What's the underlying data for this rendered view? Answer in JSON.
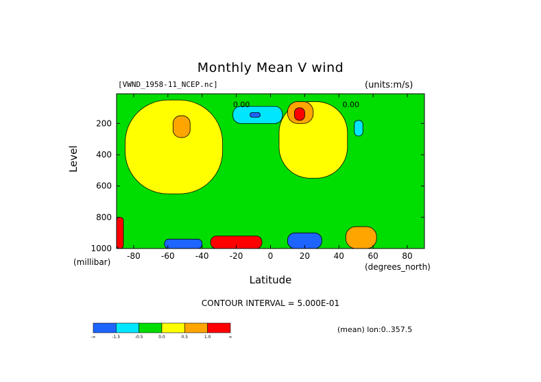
{
  "chart_data": {
    "type": "heatmap",
    "title": "Monthly Mean V wind",
    "source_label": "[VWND_1958-11_NCEP.nc]",
    "units_label": "(units:m/s)",
    "xlabel": "Latitude",
    "x_unit_label": "(degrees_north)",
    "ylabel": "Level",
    "y_unit_label": "(millibar)",
    "xlim": [
      -90,
      90
    ],
    "ylim": [
      1000,
      10
    ],
    "x_ticks": [
      -80,
      -60,
      -40,
      -20,
      0,
      20,
      40,
      60,
      80
    ],
    "y_ticks": [
      200,
      400,
      600,
      800,
      1000
    ],
    "contour_interval_label": "CONTOUR INTERVAL = 5.000E-01",
    "mean_label": "(mean) lon:0..357.5",
    "contour_labels": [
      {
        "text": "0.00",
        "lat": -17,
        "lev": 95
      },
      {
        "text": "0.00",
        "lat": 47,
        "lev": 95
      }
    ],
    "colorbar": {
      "colors": [
        "#1e64ff",
        "#00e6ff",
        "#00dd00",
        "#ffff00",
        "#ffa500",
        "#ff0000"
      ],
      "tick_labels": [
        "-∞",
        "-1.5",
        "-0.5",
        "0.0",
        "0.5",
        "1.0",
        "∞"
      ]
    },
    "regions": [
      {
        "level": "green",
        "lat_range": [
          -90,
          90
        ],
        "lev_range": [
          10,
          1000
        ],
        "description": "background near zero (-0.5 to 0)"
      },
      {
        "level": "yellow",
        "lat_range": [
          -85,
          -28
        ],
        "lev_range": [
          50,
          650
        ],
        "description": "weak positive, southern mid-latitudes"
      },
      {
        "level": "orange",
        "lat_range": [
          -57,
          -47
        ],
        "lev_range": [
          150,
          290
        ],
        "description": "local maximum near 200 hPa"
      },
      {
        "level": "cyan",
        "lat_range": [
          -22,
          7
        ],
        "lev_range": [
          90,
          200
        ],
        "description": "negative maximum upper troposphere"
      },
      {
        "level": "blue",
        "lat_range": [
          -12,
          -6
        ],
        "lev_range": [
          130,
          160
        ],
        "description": "strongest negative aloft"
      },
      {
        "level": "yellow",
        "lat_range": [
          5,
          45
        ],
        "lev_range": [
          60,
          550
        ],
        "description": "positive band tropics north"
      },
      {
        "level": "orange",
        "lat_range": [
          10,
          25
        ],
        "lev_range": [
          60,
          200
        ],
        "description": "positive aloft"
      },
      {
        "level": "red",
        "lat_range": [
          14,
          20
        ],
        "lev_range": [
          100,
          180
        ],
        "description": "maximum aloft"
      },
      {
        "level": "red",
        "lat_range": [
          -35,
          -5
        ],
        "lev_range": [
          920,
          1000
        ],
        "description": "strong southerly-to-northerly surface flow"
      },
      {
        "level": "blue",
        "lat_range": [
          -62,
          -40
        ],
        "lev_range": [
          940,
          1000
        ],
        "description": "negative near surface"
      },
      {
        "level": "blue",
        "lat_range": [
          10,
          30
        ],
        "lev_range": [
          900,
          1000
        ],
        "description": "negative near surface tropics north"
      },
      {
        "level": "orange",
        "lat_range": [
          44,
          62
        ],
        "lev_range": [
          860,
          1000
        ],
        "description": "positive near surface"
      },
      {
        "level": "cyan",
        "lat_range": [
          49,
          54
        ],
        "lev_range": [
          180,
          280
        ],
        "description": "small negative cell"
      },
      {
        "level": "red",
        "lat_range": [
          -90,
          -86
        ],
        "lev_range": [
          800,
          1000
        ],
        "description": "positive at southern boundary"
      }
    ]
  }
}
